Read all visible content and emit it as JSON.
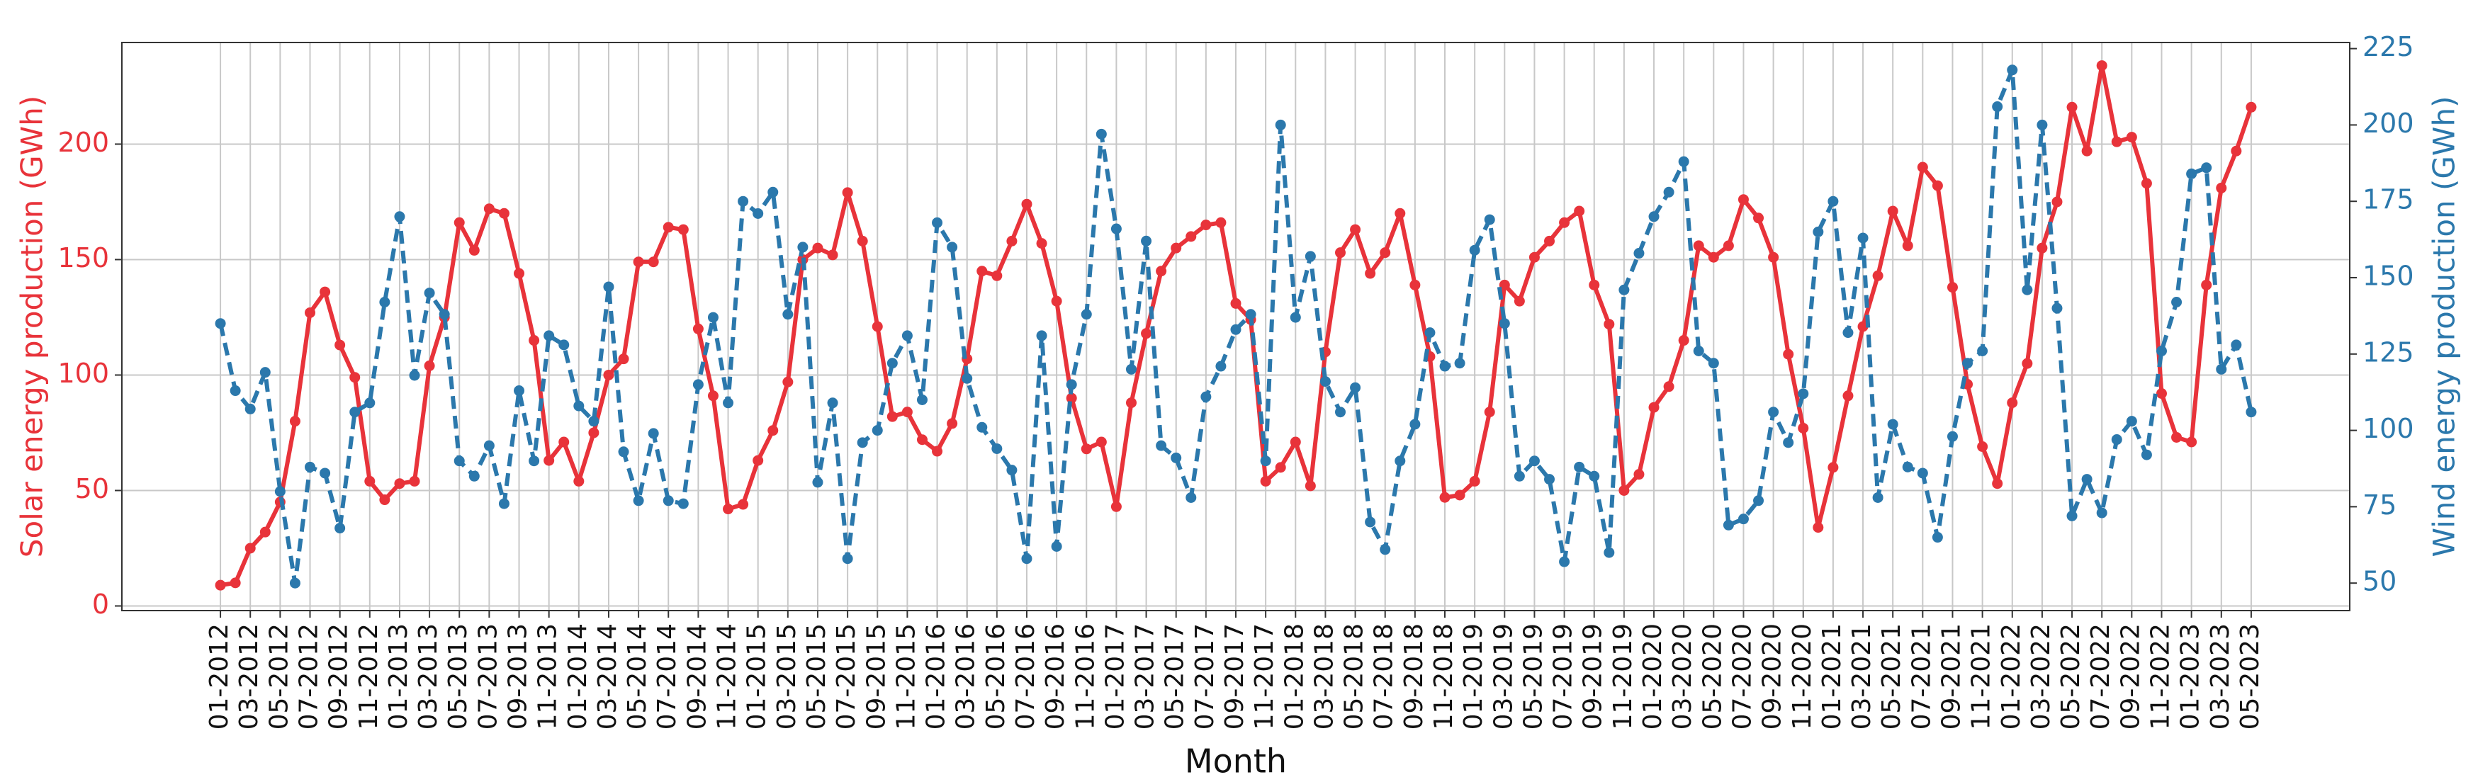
{
  "chart_data": {
    "type": "line",
    "xlabel": "Month",
    "ylabel": "Solar energy production (GWh)",
    "y2label": "Wind energy production (GWh)",
    "grid": true,
    "categories": [
      "01-2012",
      null,
      "03-2012",
      null,
      "05-2012",
      null,
      "07-2012",
      null,
      "09-2012",
      null,
      "11-2012",
      null,
      "01-2013",
      null,
      "03-2013",
      null,
      "05-2013",
      null,
      "07-2013",
      null,
      "09-2013",
      null,
      "11-2013",
      null,
      "01-2014",
      null,
      "03-2014",
      null,
      "05-2014",
      null,
      "07-2014",
      null,
      "09-2014",
      null,
      "11-2014",
      null,
      "01-2015",
      null,
      "03-2015",
      null,
      "05-2015",
      null,
      "07-2015",
      null,
      "09-2015",
      null,
      "11-2015",
      null,
      "01-2016",
      null,
      "03-2016",
      null,
      "05-2016",
      null,
      "07-2016",
      null,
      "09-2016",
      null,
      "11-2016",
      null,
      "01-2017",
      null,
      "03-2017",
      null,
      "05-2017",
      null,
      "07-2017",
      null,
      "09-2017",
      null,
      "11-2017",
      null,
      "01-2018",
      null,
      "03-2018",
      null,
      "05-2018",
      null,
      "07-2018",
      null,
      "09-2018",
      null,
      "11-2018",
      null,
      "01-2019",
      null,
      "03-2019",
      null,
      "05-2019",
      null,
      "07-2019",
      null,
      "09-2019",
      null,
      "11-2019",
      null,
      "01-2020",
      null,
      "03-2020",
      null,
      "05-2020",
      null,
      "07-2020",
      null,
      "09-2020",
      null,
      "11-2020",
      null,
      "01-2021",
      null,
      "03-2021",
      null,
      "05-2021",
      null,
      "07-2021",
      null,
      "09-2021",
      null,
      "11-2021",
      null,
      "01-2022",
      null,
      "03-2022",
      null,
      "05-2022",
      null,
      "07-2022",
      null,
      "09-2022",
      null,
      "11-2022",
      null,
      "01-2023",
      null,
      "03-2023",
      null,
      "05-2023"
    ],
    "series": [
      {
        "name": "Solar energy production",
        "color": "#e8333a",
        "linestyle": "solid",
        "axis": "y",
        "values": [
          9,
          10,
          25,
          32,
          45,
          80,
          127,
          136,
          113,
          99,
          54,
          46,
          53,
          54,
          104,
          125,
          166,
          154,
          172,
          170,
          144,
          115,
          63,
          71,
          54,
          75,
          100,
          107,
          149,
          149,
          164,
          163,
          120,
          91,
          42,
          44,
          63,
          76,
          97,
          150,
          155,
          152,
          179,
          158,
          121,
          82,
          84,
          72,
          67,
          79,
          107,
          145,
          143,
          158,
          174,
          157,
          132,
          90,
          68,
          71,
          43,
          88,
          118,
          145,
          155,
          160,
          165,
          166,
          131,
          124,
          54,
          60,
          71,
          52,
          110,
          153,
          163,
          144,
          153,
          170,
          139,
          108,
          47,
          48,
          54,
          84,
          139,
          132,
          151,
          158,
          166,
          171,
          139,
          122,
          50,
          57,
          86,
          95,
          115,
          156,
          151,
          156,
          176,
          168,
          151,
          109,
          77,
          34,
          60,
          91,
          121,
          143,
          171,
          156,
          190,
          182,
          138,
          96,
          69,
          53,
          88,
          105,
          155,
          175,
          216,
          197,
          234,
          201,
          203,
          183,
          92,
          73,
          71,
          139,
          181,
          197,
          216
        ]
      },
      {
        "name": "Wind energy production",
        "color": "#2b78ac",
        "linestyle": "dashed",
        "axis": "y2",
        "values": [
          135,
          113,
          107,
          119,
          80,
          50,
          88,
          86,
          68,
          106,
          109,
          142,
          170,
          118,
          145,
          138,
          90,
          85,
          95,
          76,
          113,
          90,
          131,
          128,
          108,
          103,
          147,
          93,
          77,
          99,
          77,
          76,
          115,
          137,
          109,
          175,
          171,
          178,
          138,
          160,
          83,
          109,
          58,
          96,
          100,
          122,
          131,
          110,
          168,
          160,
          117,
          101,
          94,
          87,
          58,
          131,
          62,
          115,
          138,
          197,
          166,
          120,
          162,
          95,
          91,
          78,
          111,
          121,
          133,
          138,
          90,
          200,
          137,
          157,
          116,
          106,
          114,
          70,
          61,
          90,
          102,
          132,
          121,
          122,
          159,
          169,
          135,
          85,
          90,
          84,
          57,
          88,
          85,
          60,
          146,
          158,
          170,
          178,
          188,
          126,
          122,
          69,
          71,
          77,
          106,
          96,
          112,
          165,
          175,
          132,
          163,
          78,
          102,
          88,
          86,
          65,
          98,
          122,
          126,
          206,
          218,
          146,
          200,
          140,
          72,
          84,
          73,
          97,
          103,
          92,
          126,
          142,
          184,
          186,
          120,
          128,
          106
        ]
      }
    ],
    "ylim": [
      -2,
      244
    ],
    "yticks": [
      0,
      50,
      100,
      150,
      200
    ],
    "y2lim": [
      41,
      227
    ],
    "y2ticks": [
      50,
      75,
      100,
      125,
      150,
      175,
      200,
      225
    ]
  }
}
